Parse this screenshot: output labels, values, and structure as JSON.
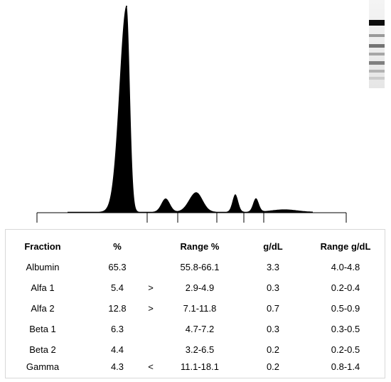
{
  "chart_data": {
    "type": "line",
    "subtype": "serum protein electrophoresis densitogram",
    "fill": "#000000",
    "peaks": [
      {
        "fraction": "Albumin",
        "relative_height": 1.0
      },
      {
        "fraction": "Alfa 1",
        "relative_height": 0.065
      },
      {
        "fraction": "Alfa 2",
        "relative_height": 0.095
      },
      {
        "fraction": "Beta 1",
        "relative_height": 0.085
      },
      {
        "fraction": "Beta 2",
        "relative_height": 0.065
      },
      {
        "fraction": "Gamma",
        "relative_height": 0.012
      }
    ],
    "fraction_separators": 6
  },
  "gel_strip": {
    "band_intensities": [
      0.95,
      0.4,
      0.55,
      0.35,
      0.5,
      0.3,
      0.2
    ]
  },
  "table": {
    "headers": {
      "fraction": "Fraction",
      "percent": "%",
      "range_percent": "Range %",
      "gdl": "g/dL",
      "range_gdl": "Range g/dL"
    },
    "rows": [
      {
        "fraction": "Albumin",
        "percent": "65.3",
        "flag": "",
        "range_percent": "55.8-66.1",
        "gdl": "3.3",
        "range_gdl": "4.0-4.8"
      },
      {
        "fraction": "Alfa 1",
        "percent": "5.4",
        "flag": ">",
        "range_percent": "2.9-4.9",
        "gdl": "0.3",
        "range_gdl": "0.2-0.4"
      },
      {
        "fraction": "Alfa 2",
        "percent": "12.8",
        "flag": ">",
        "range_percent": "7.1-11.8",
        "gdl": "0.7",
        "range_gdl": "0.5-0.9"
      },
      {
        "fraction": "Beta 1",
        "percent": "6.3",
        "flag": "",
        "range_percent": "4.7-7.2",
        "gdl": "0.3",
        "range_gdl": "0.3-0.5"
      },
      {
        "fraction": "Beta 2",
        "percent": "4.4",
        "flag": "",
        "range_percent": "3.2-6.5",
        "gdl": "0.2",
        "range_gdl": "0.2-0.5"
      },
      {
        "fraction": "Gamma",
        "percent": "4.3",
        "flag": "<",
        "range_percent": "11.1-18.1",
        "gdl": "0.2",
        "range_gdl": "0.8-1.4"
      }
    ]
  }
}
